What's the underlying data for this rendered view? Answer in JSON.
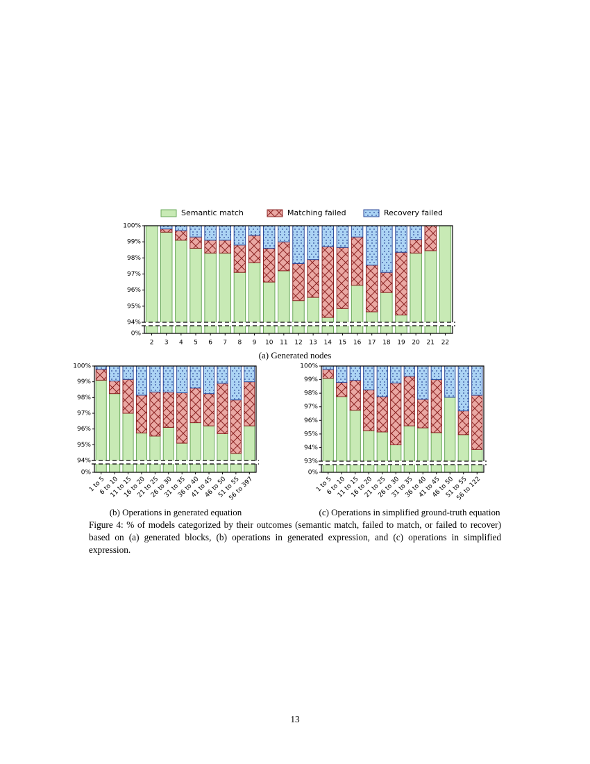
{
  "chart_data": [
    {
      "type": "bar",
      "stacked": true,
      "subtitle": "(a) Generated nodes",
      "legend": "top",
      "categories": [
        "2",
        "3",
        "4",
        "5",
        "6",
        "7",
        "8",
        "9",
        "10",
        "11",
        "12",
        "13",
        "14",
        "15",
        "16",
        "17",
        "18",
        "19",
        "20",
        "21",
        "22"
      ],
      "series": [
        {
          "name": "Semantic match",
          "color": "#c8eab5",
          "edgecolor": "#6aa85a",
          "values": [
            100,
            99.6,
            99.1,
            98.6,
            98.3,
            98.3,
            97.1,
            97.7,
            96.5,
            97.2,
            95.35,
            95.55,
            94.3,
            94.85,
            96.3,
            94.65,
            95.85,
            94.45,
            98.3,
            98.45,
            100
          ]
        },
        {
          "name": "Matching failed",
          "color": "#eaa8a3",
          "edgecolor": "#8b2323",
          "hatch": "x",
          "values": [
            0,
            0.2,
            0.6,
            0.7,
            0.8,
            0.8,
            1.7,
            1.7,
            2.1,
            1.8,
            2.3,
            2.35,
            4.4,
            3.8,
            3.0,
            2.9,
            1.25,
            3.9,
            0.85,
            1.55,
            0
          ]
        },
        {
          "name": "Recovery failed",
          "color": "#acd4f4",
          "edgecolor": "#2c4a9a",
          "hatch": "dots",
          "values": [
            0,
            0.2,
            0.3,
            0.7,
            0.9,
            0.9,
            1.2,
            0.6,
            1.4,
            1.0,
            2.35,
            2.1,
            1.3,
            1.35,
            0.7,
            2.45,
            2.9,
            1.65,
            0.85,
            0,
            0
          ]
        }
      ],
      "ylim": [
        0,
        100
      ],
      "ybreak": 94,
      "yticks": [
        {
          "value": 0,
          "label": "0%"
        },
        {
          "value": 94,
          "label": "94%"
        },
        {
          "value": 95,
          "label": "95%"
        },
        {
          "value": 96,
          "label": "96%"
        },
        {
          "value": 97,
          "label": "97%"
        },
        {
          "value": 98,
          "label": "98%"
        },
        {
          "value": 99,
          "label": "99%"
        },
        {
          "value": 100,
          "label": "100%"
        }
      ]
    },
    {
      "type": "bar",
      "stacked": true,
      "subtitle": "(b) Operations in generated equation",
      "categories": [
        "1 to 5",
        "6 to 10",
        "11 to 15",
        "16 to 20",
        "21 to 25",
        "26 to 30",
        "31 to 35",
        "36 to 40",
        "41 to 45",
        "46 to 50",
        "51 to 55",
        "56 to 397"
      ],
      "series": [
        {
          "color": "#c8eab5",
          "edgecolor": "#6aa85a",
          "values": [
            99.1,
            98.25,
            97.0,
            95.75,
            95.55,
            96.1,
            95.1,
            96.4,
            96.2,
            95.7,
            94.45,
            96.2
          ]
        },
        {
          "color": "#eaa8a3",
          "edgecolor": "#8b2323",
          "hatch": "x",
          "values": [
            0.7,
            0.8,
            2.15,
            2.4,
            2.8,
            2.25,
            3.2,
            2.2,
            2.05,
            3.2,
            3.4,
            2.8
          ]
        },
        {
          "color": "#acd4f4",
          "edgecolor": "#2c4a9a",
          "hatch": "dots",
          "values": [
            0.2,
            0.95,
            0.85,
            1.85,
            1.65,
            1.65,
            1.7,
            1.4,
            1.75,
            1.1,
            2.15,
            1.0
          ]
        }
      ],
      "ylim": [
        0,
        100
      ],
      "ybreak": 94,
      "yticks": [
        {
          "value": 0,
          "label": "0%"
        },
        {
          "value": 94,
          "label": "94%"
        },
        {
          "value": 95,
          "label": "95%"
        },
        {
          "value": 96,
          "label": "96%"
        },
        {
          "value": 97,
          "label": "97%"
        },
        {
          "value": 98,
          "label": "98%"
        },
        {
          "value": 99,
          "label": "99%"
        },
        {
          "value": 100,
          "label": "100%"
        }
      ]
    },
    {
      "type": "bar",
      "stacked": true,
      "subtitle": "(c) Operations in simplified ground-truth equation",
      "categories": [
        "1 to 5",
        "6 to 10",
        "11 to 15",
        "16 to 20",
        "21 to 25",
        "26 to 30",
        "31 to 35",
        "36 to 40",
        "41 to 45",
        "46 to 50",
        "51 to 55",
        "56 to 122"
      ],
      "series": [
        {
          "color": "#c8eab5",
          "edgecolor": "#6aa85a",
          "values": [
            99.1,
            97.75,
            96.75,
            95.25,
            95.15,
            94.2,
            95.6,
            95.45,
            95.1,
            97.7,
            94.95,
            93.85
          ]
        },
        {
          "color": "#eaa8a3",
          "edgecolor": "#8b2323",
          "hatch": "x",
          "values": [
            0.65,
            1.05,
            2.2,
            3.0,
            2.6,
            4.55,
            3.65,
            2.1,
            3.9,
            0,
            1.75,
            4.0
          ]
        },
        {
          "color": "#acd4f4",
          "edgecolor": "#2c4a9a",
          "hatch": "dots",
          "values": [
            0.25,
            1.2,
            1.05,
            1.75,
            2.25,
            1.25,
            0.75,
            2.45,
            1.0,
            2.3,
            3.3,
            2.15
          ]
        }
      ],
      "ylim": [
        0,
        100
      ],
      "ybreak": 93,
      "yticks": [
        {
          "value": 0,
          "label": "0%"
        },
        {
          "value": 93,
          "label": "93%"
        },
        {
          "value": 94,
          "label": "94%"
        },
        {
          "value": 95,
          "label": "95%"
        },
        {
          "value": 96,
          "label": "96%"
        },
        {
          "value": 97,
          "label": "97%"
        },
        {
          "value": 98,
          "label": "98%"
        },
        {
          "value": 99,
          "label": "99%"
        },
        {
          "value": 100,
          "label": "100%"
        }
      ]
    }
  ],
  "caption": "Figure 4: % of models categorized by their outcomes (semantic match, failed to match, or failed to recover) based on (a) generated blocks, (b) operations in generated expression, and (c) operations in simplified expression.",
  "page_number": "13"
}
